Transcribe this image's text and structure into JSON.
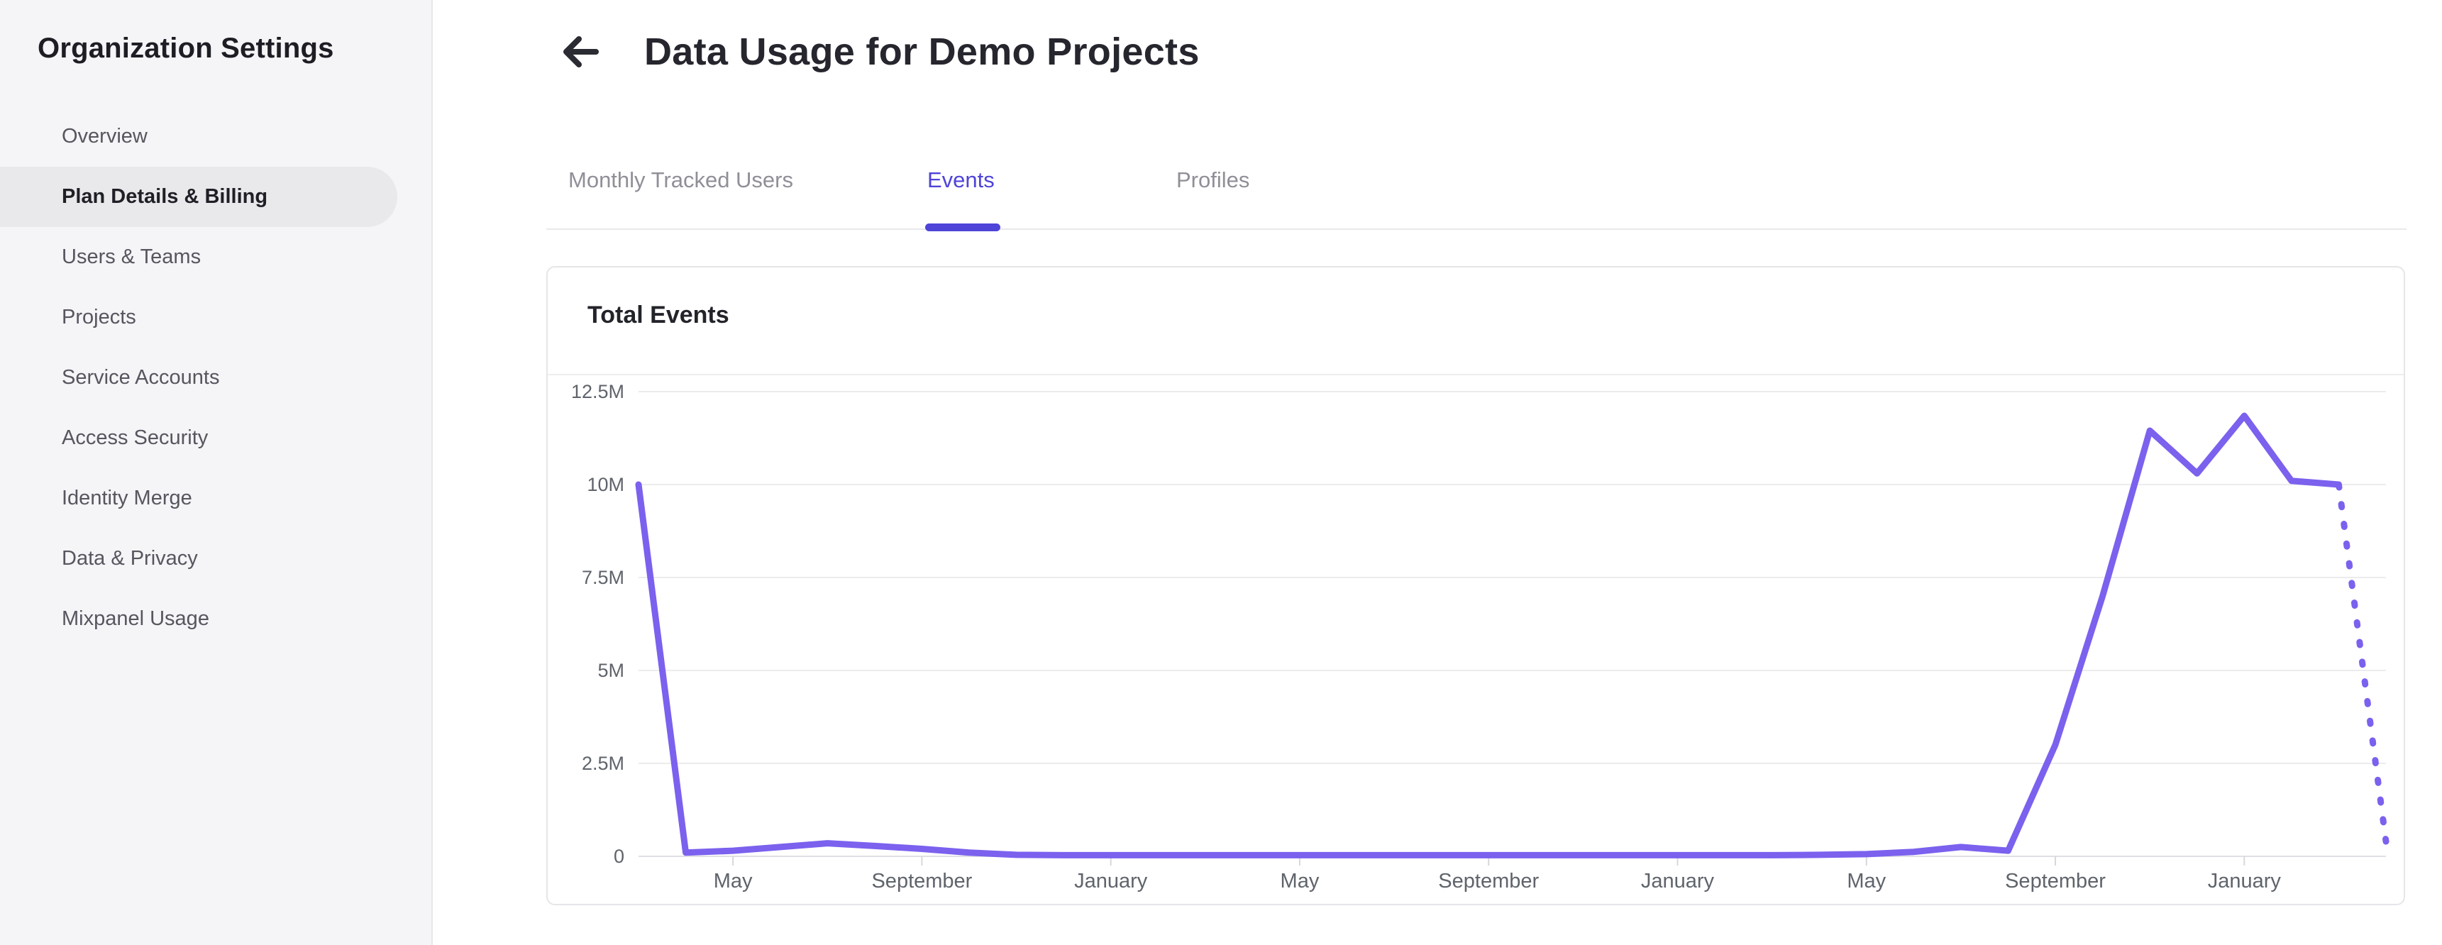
{
  "sidebar": {
    "title": "Organization Settings",
    "items": [
      {
        "label": "Overview",
        "selected": false
      },
      {
        "label": "Plan Details & Billing",
        "selected": true
      },
      {
        "label": "Users & Teams",
        "selected": false
      },
      {
        "label": "Projects",
        "selected": false
      },
      {
        "label": "Service Accounts",
        "selected": false
      },
      {
        "label": "Access Security",
        "selected": false
      },
      {
        "label": "Identity Merge",
        "selected": false
      },
      {
        "label": "Data & Privacy",
        "selected": false
      },
      {
        "label": "Mixpanel Usage",
        "selected": false
      }
    ]
  },
  "header": {
    "title": "Data Usage for Demo Projects",
    "back_icon": "arrow-left-icon"
  },
  "tabs": [
    {
      "label": "Monthly Tracked Users",
      "active": false
    },
    {
      "label": "Events",
      "active": true
    },
    {
      "label": "Profiles",
      "active": false
    }
  ],
  "card": {
    "title": "Total Events"
  },
  "colors": {
    "accent": "#4e44d8",
    "chart_line": "#7b61ee",
    "sidebar_bg": "#f5f4f6",
    "selected_pill": "#e9e8ea",
    "grid_line": "#ececef",
    "axis_line": "#e0e0e4",
    "axis_text": "#5f646b"
  },
  "chart_data": {
    "type": "line",
    "title": "Total Events",
    "unit": "events, millions",
    "series": [
      {
        "name": "Total Events",
        "values_millions": [
          10.0,
          0.1,
          0.15,
          0.25,
          0.35,
          0.28,
          0.2,
          0.1,
          0.04,
          0.03,
          0.03,
          0.03,
          0.03,
          0.03,
          0.03,
          0.03,
          0.03,
          0.03,
          0.03,
          0.03,
          0.03,
          0.03,
          0.03,
          0.03,
          0.03,
          0.04,
          0.06,
          0.12,
          0.25,
          0.15,
          3.0,
          7.0,
          11.45,
          10.3,
          11.85,
          10.1,
          10.0,
          0.4
        ]
      }
    ],
    "x_index_count": 38,
    "x_ticks": [
      {
        "index": 2,
        "label": "May"
      },
      {
        "index": 6,
        "label": "September"
      },
      {
        "index": 10,
        "label": "January"
      },
      {
        "index": 14,
        "label": "May"
      },
      {
        "index": 18,
        "label": "September"
      },
      {
        "index": 22,
        "label": "January"
      },
      {
        "index": 26,
        "label": "May"
      },
      {
        "index": 30,
        "label": "September"
      },
      {
        "index": 34,
        "label": "January"
      }
    ],
    "y_ticks": [
      {
        "value": 0,
        "label": "0"
      },
      {
        "value": 2.5,
        "label": "2.5M"
      },
      {
        "value": 5,
        "label": "5M"
      },
      {
        "value": 7.5,
        "label": "7.5M"
      },
      {
        "value": 10,
        "label": "10M"
      },
      {
        "value": 12.5,
        "label": "12.5M"
      }
    ],
    "ylim_millions": [
      0,
      12.5
    ],
    "last_segment_projected_dotted": true,
    "grid": true,
    "legend": "none",
    "line_color": "#7b61ee"
  }
}
